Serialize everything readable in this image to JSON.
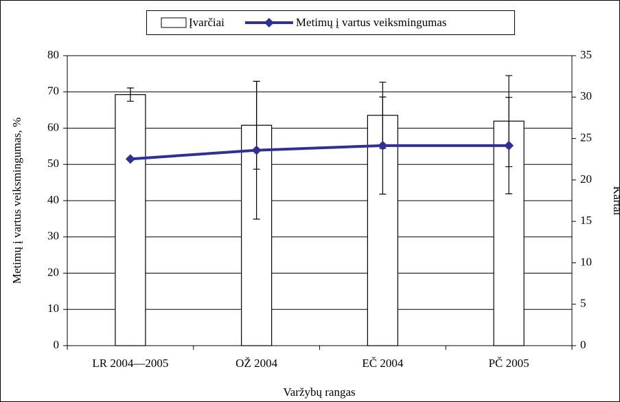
{
  "chart_data": {
    "type": "bar-line",
    "xlabel": "Varžybų rangas",
    "ylabel": "Metimų į vartus veiksmingumas, %",
    "y2label": "Kartai",
    "categories": [
      "LR 2004—2005",
      "OŽ 2004",
      "EČ 2004",
      "PČ 2005"
    ],
    "ylim": [
      0,
      80
    ],
    "yticks": [
      0,
      10,
      20,
      30,
      40,
      50,
      60,
      70,
      80
    ],
    "y2lim": [
      0,
      35
    ],
    "y2ticks": [
      0,
      5,
      10,
      15,
      20,
      25,
      30,
      35
    ],
    "grid": true,
    "legend": "top",
    "series": [
      {
        "name": "Įvarčiai",
        "type": "bar",
        "axis": "y2",
        "color": "#ffffff",
        "values": [
          30.3,
          26.6,
          27.8,
          27.1
        ],
        "errors": [
          0.8,
          5.3,
          4.0,
          5.5
        ]
      },
      {
        "name": "Metimų į vartus veiksmingumas",
        "type": "line",
        "axis": "y",
        "color": "#2e3192",
        "values": [
          51.5,
          53.9,
          55.2,
          55.2
        ],
        "errors": [
          null,
          19.0,
          13.4,
          13.3
        ]
      }
    ]
  }
}
